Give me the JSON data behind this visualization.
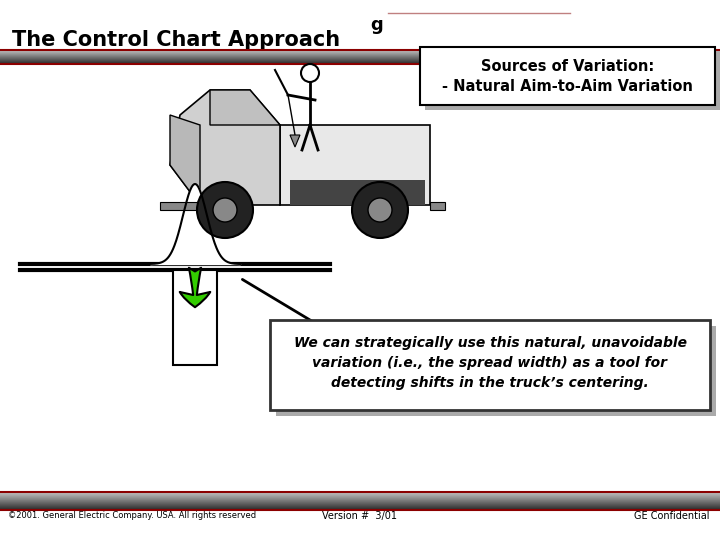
{
  "title": "The Control Chart Approach",
  "page_num": "g",
  "sources_box_title": "Sources of Variation:",
  "sources_box_line": "- Natural Aim-to-Aim Variation",
  "body_text": "We can strategically use this natural, unavoidable\nvariation (i.e., the spread width) as a tool for\ndetecting shifts in the truck’s centering.",
  "footer_left": "©2001. General Electric Company. USA. All rights reserved",
  "footer_center": "Version #  3/01",
  "footer_right": "GE Confidential",
  "bg_color": "#ffffff",
  "title_color": "#000000",
  "header_line_color": "#8B0000",
  "footer_line_color": "#8B0000",
  "box_border_color": "#000000",
  "body_box_border_color": "#333333",
  "arrow_fill": "#33cc00",
  "arrow_edge": "#000000",
  "shadow_color": "#aaaaaa"
}
